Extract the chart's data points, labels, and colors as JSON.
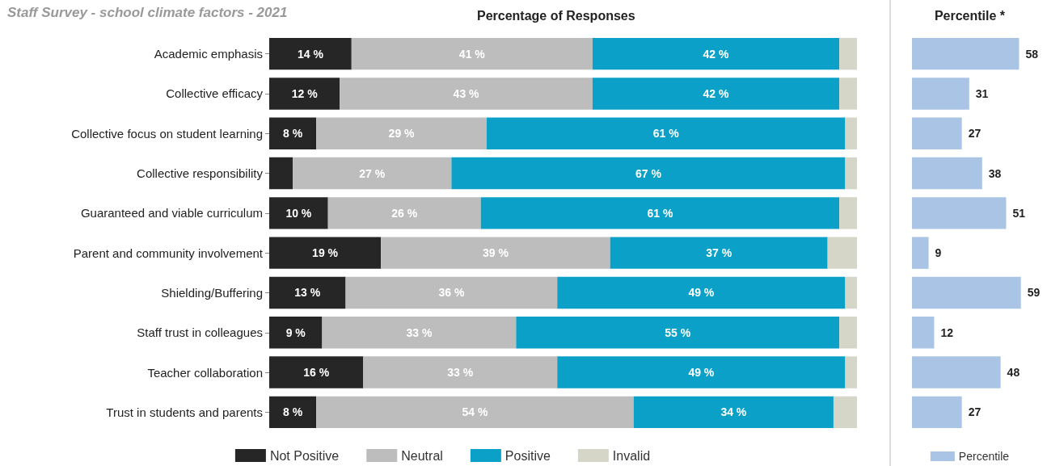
{
  "chart_data": [
    {
      "type": "bar",
      "orientation": "horizontal",
      "stacked": true,
      "title": "Percentage of Responses",
      "annotations": [
        "Staff Survey - school climate factors - 2021"
      ],
      "categories": [
        "Academic emphasis",
        "Collective efficacy",
        "Collective focus on student learning",
        "Collective responsibility",
        "Guaranteed and viable curriculum",
        "Parent and community involvement",
        "Shielding/Buffering",
        "Staff trust in colleagues",
        "Teacher collaboration",
        "Trust in students and parents"
      ],
      "series": [
        {
          "name": "Not Positive",
          "color": "#262626",
          "values": [
            14,
            12,
            8,
            4,
            10,
            19,
            13,
            9,
            16,
            8
          ],
          "value_labels": [
            "14 %",
            "12 %",
            "8 %",
            null,
            "10 %",
            "19 %",
            "13 %",
            "9 %",
            "16 %",
            "8 %"
          ]
        },
        {
          "name": "Neutral",
          "color": "#bdbdbd",
          "values": [
            41,
            43,
            29,
            27,
            26,
            39,
            36,
            33,
            33,
            54
          ],
          "value_labels": [
            "41 %",
            "43 %",
            "29 %",
            "27 %",
            "26 %",
            "39 %",
            "36 %",
            "33 %",
            "33 %",
            "54 %"
          ]
        },
        {
          "name": "Positive",
          "color": "#0aa0c8",
          "values": [
            42,
            42,
            61,
            67,
            61,
            37,
            49,
            55,
            49,
            34
          ],
          "value_labels": [
            "42 %",
            "42 %",
            "61 %",
            "67 %",
            "61 %",
            "37 %",
            "49 %",
            "55 %",
            "49 %",
            "34 %"
          ]
        },
        {
          "name": "Invalid",
          "color": "#d6d6c8",
          "values": [
            3,
            3,
            2,
            2,
            3,
            5,
            2,
            3,
            2,
            4
          ]
        }
      ],
      "legend": "bottom",
      "tick_labels": "y"
    },
    {
      "type": "bar",
      "orientation": "horizontal",
      "title": "Percentile *",
      "categories": [
        null,
        null,
        null,
        null,
        null,
        null,
        null,
        null,
        null,
        null
      ],
      "series": [
        {
          "name": "Percentile",
          "color": "#a9c4e4",
          "values": [
            58,
            31,
            27,
            38,
            51,
            9,
            59,
            12,
            48,
            27
          ]
        }
      ],
      "data_labels": true,
      "legend": "bottom",
      "tick_labels": false
    }
  ]
}
